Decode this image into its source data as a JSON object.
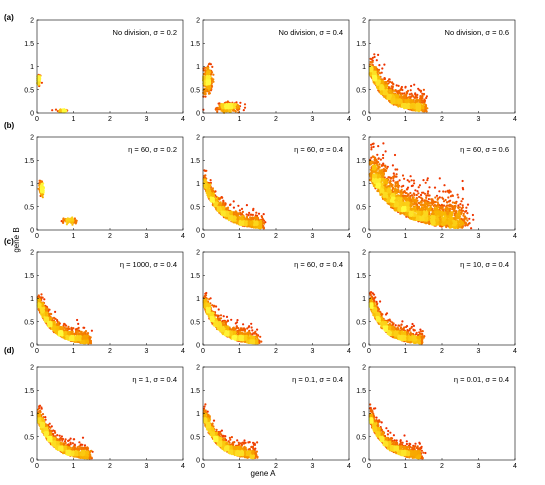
{
  "figure": {
    "xlabel": "gene A",
    "ylabel": "gene B",
    "row_labels": [
      "(a)",
      "(b)",
      "(c)",
      "(d)"
    ]
  },
  "chart_data": [
    {
      "type": "scatter",
      "panel": "a1",
      "annotation": "No division, σ = 0.2",
      "xlim": [
        0,
        4
      ],
      "ylim": [
        0,
        2
      ],
      "xticks": [
        "0",
        "1",
        "2",
        "3",
        "4"
      ],
      "yticks": [
        "0",
        "0.5",
        "1",
        "1.5",
        "2"
      ],
      "clusters": [
        {
          "cx": 0.05,
          "cy": 0.7,
          "sx": 0.03,
          "sy": 0.07,
          "n": 60
        },
        {
          "cx": 0.7,
          "cy": 0.05,
          "sx": 0.07,
          "sy": 0.02,
          "n": 50
        }
      ]
    },
    {
      "type": "scatter",
      "panel": "a2",
      "annotation": "No division, σ = 0.4",
      "xlim": [
        0,
        4
      ],
      "ylim": [
        0,
        2
      ],
      "xticks": [
        "0",
        "1",
        "2",
        "3",
        "4"
      ],
      "yticks": [
        "0",
        "0.5",
        "1",
        "1.5",
        "2"
      ],
      "clusters": [
        {
          "cx": 0.12,
          "cy": 0.7,
          "sx": 0.07,
          "sy": 0.15,
          "n": 260
        },
        {
          "cx": 0.7,
          "cy": 0.12,
          "sx": 0.15,
          "sy": 0.05,
          "n": 240
        }
      ]
    },
    {
      "type": "scatter",
      "panel": "a3",
      "annotation": "No division, σ = 0.6",
      "xlim": [
        0,
        4
      ],
      "ylim": [
        0,
        2
      ],
      "xticks": [
        "0",
        "1",
        "2",
        "3",
        "4"
      ],
      "yticks": [
        "0",
        "0.5",
        "1",
        "1.5",
        "2"
      ],
      "anti": {
        "base": 0.85,
        "spread": 0.22,
        "tmax": 1.5,
        "n": 1300
      }
    },
    {
      "type": "scatter",
      "panel": "b1",
      "annotation": "η = 60, σ = 0.2",
      "xlim": [
        0,
        4
      ],
      "ylim": [
        0,
        2
      ],
      "xticks": [
        "0",
        "1",
        "2",
        "3",
        "4"
      ],
      "yticks": [
        "0",
        "0.5",
        "1",
        "1.5",
        "2"
      ],
      "clusters": [
        {
          "cx": 0.12,
          "cy": 0.9,
          "sx": 0.03,
          "sy": 0.08,
          "n": 110
        },
        {
          "cx": 0.9,
          "cy": 0.2,
          "sx": 0.08,
          "sy": 0.03,
          "n": 110
        }
      ]
    },
    {
      "type": "scatter",
      "panel": "b2",
      "annotation": "η = 60, σ = 0.4",
      "xlim": [
        0,
        4
      ],
      "ylim": [
        0,
        2
      ],
      "xticks": [
        "0",
        "1",
        "2",
        "3",
        "4"
      ],
      "yticks": [
        "0",
        "0.5",
        "1",
        "1.5",
        "2"
      ],
      "anti": {
        "base": 0.95,
        "spread": 0.16,
        "tmax": 1.6,
        "n": 1300
      }
    },
    {
      "type": "scatter",
      "panel": "b3",
      "annotation": "η = 60, σ = 0.6",
      "xlim": [
        0,
        4
      ],
      "ylim": [
        0,
        2
      ],
      "xticks": [
        "0",
        "1",
        "2",
        "3",
        "4"
      ],
      "yticks": [
        "0",
        "0.5",
        "1",
        "1.5",
        "2"
      ],
      "anti": {
        "base": 1.1,
        "spread": 0.38,
        "tmax": 2.5,
        "n": 2400
      }
    },
    {
      "type": "scatter",
      "panel": "c1",
      "annotation": "η = 1000, σ = 0.4",
      "xlim": [
        0,
        4
      ],
      "ylim": [
        0,
        2
      ],
      "xticks": [
        "0",
        "1",
        "2",
        "3",
        "4"
      ],
      "yticks": [
        "0",
        "0.5",
        "1",
        "1.5",
        "2"
      ],
      "anti": {
        "base": 0.85,
        "spread": 0.16,
        "tmax": 1.4,
        "n": 1300
      }
    },
    {
      "type": "scatter",
      "panel": "c2",
      "annotation": "η = 60, σ = 0.4",
      "xlim": [
        0,
        4
      ],
      "ylim": [
        0,
        2
      ],
      "xticks": [
        "0",
        "1",
        "2",
        "3",
        "4"
      ],
      "yticks": [
        "0",
        "0.5",
        "1",
        "1.5",
        "2"
      ],
      "anti": {
        "base": 0.85,
        "spread": 0.16,
        "tmax": 1.45,
        "n": 1300
      }
    },
    {
      "type": "scatter",
      "panel": "c3",
      "annotation": "η = 10, σ = 0.4",
      "xlim": [
        0,
        4
      ],
      "ylim": [
        0,
        2
      ],
      "xticks": [
        "0",
        "1",
        "2",
        "3",
        "4"
      ],
      "yticks": [
        "0",
        "0.5",
        "1",
        "1.5",
        "2"
      ],
      "anti": {
        "base": 0.85,
        "spread": 0.16,
        "tmax": 1.4,
        "n": 1300
      }
    },
    {
      "type": "scatter",
      "panel": "d1",
      "annotation": "η = 1, σ = 0.4",
      "xlim": [
        0,
        4
      ],
      "ylim": [
        0,
        2
      ],
      "xticks": [
        "0",
        "1",
        "2",
        "3",
        "4"
      ],
      "yticks": [
        "0",
        "0.5",
        "1",
        "1.5",
        "2"
      ],
      "anti": {
        "base": 0.85,
        "spread": 0.16,
        "tmax": 1.4,
        "n": 1300
      }
    },
    {
      "type": "scatter",
      "panel": "d2",
      "annotation": "η = 0.1, σ = 0.4",
      "xlim": [
        0,
        4
      ],
      "ylim": [
        0,
        2
      ],
      "xticks": [
        "0",
        "1",
        "2",
        "3",
        "4"
      ],
      "yticks": [
        "0",
        "0.5",
        "1",
        "1.5",
        "2"
      ],
      "anti": {
        "base": 0.85,
        "spread": 0.16,
        "tmax": 1.4,
        "n": 1300
      }
    },
    {
      "type": "scatter",
      "panel": "d3",
      "annotation": "η = 0.01, σ = 0.4",
      "xlim": [
        0,
        4
      ],
      "ylim": [
        0,
        2
      ],
      "xticks": [
        "0",
        "1",
        "2",
        "3",
        "4"
      ],
      "yticks": [
        "0",
        "0.5",
        "1",
        "1.5",
        "2"
      ],
      "anti": {
        "base": 0.85,
        "spread": 0.16,
        "tmax": 1.4,
        "n": 1300
      }
    }
  ]
}
